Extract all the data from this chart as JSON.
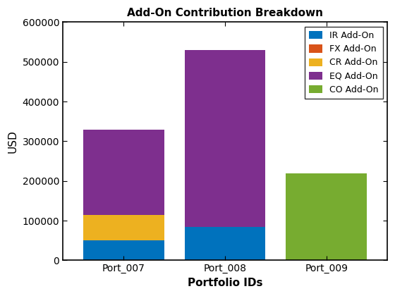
{
  "categories": [
    "Port_007",
    "Port_008",
    "Port_009"
  ],
  "series": [
    {
      "label": "IR Add-On",
      "values": [
        50000,
        85000,
        0
      ],
      "color": "#0072BD"
    },
    {
      "label": "FX Add-On",
      "values": [
        0,
        0,
        0
      ],
      "color": "#D95319"
    },
    {
      "label": "CR Add-On",
      "values": [
        65000,
        0,
        0
      ],
      "color": "#EDB120"
    },
    {
      "label": "EQ Add-On",
      "values": [
        215000,
        445000,
        0
      ],
      "color": "#7E2F8E"
    },
    {
      "label": "CO Add-On",
      "values": [
        0,
        0,
        220000
      ],
      "color": "#77AC30"
    }
  ],
  "title": "Add-On Contribution Breakdown",
  "xlabel": "Portfolio IDs",
  "ylabel": "USD",
  "ylim": [
    0,
    600000
  ],
  "yticks": [
    0,
    100000,
    200000,
    300000,
    400000,
    500000,
    600000
  ],
  "background_color": "#ffffff",
  "figsize": [
    5.6,
    4.2
  ],
  "dpi": 100,
  "bar_width": 0.8
}
